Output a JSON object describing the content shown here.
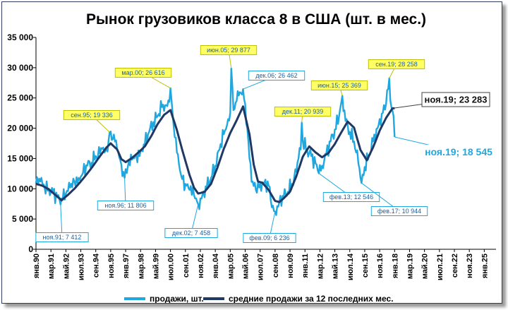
{
  "chart_data": {
    "type": "line",
    "title": "Рынок грузовиков класса 8 в США (шт. в мес.)",
    "ylim": [
      0,
      35000
    ],
    "y_ticks": [
      "0",
      "5 000",
      "10 000",
      "15 000",
      "20 000",
      "25 000",
      "30 000",
      "35 000"
    ],
    "y_tick_values": [
      0,
      5000,
      10000,
      15000,
      20000,
      25000,
      30000,
      35000
    ],
    "x_ticks": [
      "янв.90",
      "мар.91",
      "май.92",
      "июл.93",
      "сен.94",
      "ноя.95",
      "янв.97",
      "мар.98",
      "май.99",
      "июл.00",
      "сен.01",
      "ноя.02",
      "янв.04",
      "мар.05",
      "май.06",
      "июл.07",
      "сен.08",
      "ноя.09",
      "янв.11",
      "мар.12",
      "май.13",
      "июл.14",
      "сен.15",
      "ноя.16",
      "янв.18",
      "мар.19",
      "май.20",
      "июл.21",
      "сен.22",
      "ноя.23",
      "янв.25"
    ],
    "x_tick_index": [
      0,
      14,
      28,
      42,
      56,
      70,
      84,
      98,
      112,
      126,
      140,
      154,
      168,
      182,
      196,
      210,
      224,
      238,
      252,
      266,
      280,
      294,
      308,
      322,
      336,
      350,
      364,
      378,
      392,
      406,
      420
    ],
    "x_range": [
      0,
      431
    ],
    "grid": false,
    "legend_position": "bottom",
    "colors": {
      "monthly": "#1fa8e0",
      "average": "#1f3864"
    },
    "series": [
      {
        "name": "продажи, шт.",
        "points": [
          [
            0,
            11000
          ],
          [
            4,
            11200
          ],
          [
            8,
            10300
          ],
          [
            12,
            10000
          ],
          [
            16,
            9400
          ],
          [
            20,
            8600
          ],
          [
            22,
            8200
          ],
          [
            23,
            7412
          ],
          [
            24,
            8400
          ],
          [
            28,
            9200
          ],
          [
            32,
            10200
          ],
          [
            36,
            11200
          ],
          [
            40,
            11800
          ],
          [
            44,
            12600
          ],
          [
            48,
            13800
          ],
          [
            52,
            14300
          ],
          [
            56,
            15400
          ],
          [
            60,
            15800
          ],
          [
            62,
            16600
          ],
          [
            64,
            16000
          ],
          [
            66,
            16800
          ],
          [
            68,
            18000
          ],
          [
            69,
            19336
          ],
          [
            72,
            18200
          ],
          [
            74,
            17800
          ],
          [
            76,
            16500
          ],
          [
            78,
            15200
          ],
          [
            80,
            14000
          ],
          [
            82,
            12800
          ],
          [
            83,
            11806
          ],
          [
            86,
            13600
          ],
          [
            90,
            14800
          ],
          [
            94,
            15400
          ],
          [
            98,
            16200
          ],
          [
            102,
            17400
          ],
          [
            106,
            19400
          ],
          [
            110,
            21000
          ],
          [
            114,
            22000
          ],
          [
            118,
            23500
          ],
          [
            122,
            23800
          ],
          [
            124,
            24600
          ],
          [
            126,
            26616
          ],
          [
            128,
            22500
          ],
          [
            130,
            18500
          ],
          [
            132,
            16000
          ],
          [
            134,
            14000
          ],
          [
            136,
            12200
          ],
          [
            140,
            10800
          ],
          [
            144,
            9800
          ],
          [
            148,
            9000
          ],
          [
            150,
            8400
          ],
          [
            152,
            7458
          ],
          [
            154,
            8400
          ],
          [
            156,
            9000
          ],
          [
            160,
            10200
          ],
          [
            164,
            11800
          ],
          [
            168,
            13800
          ],
          [
            172,
            16500
          ],
          [
            176,
            19000
          ],
          [
            180,
            21500
          ],
          [
            182,
            22500
          ],
          [
            183,
            29877
          ],
          [
            185,
            23000
          ],
          [
            188,
            24500
          ],
          [
            190,
            25400
          ],
          [
            192,
            25800
          ],
          [
            194,
            26462
          ],
          [
            196,
            24000
          ],
          [
            198,
            20000
          ],
          [
            200,
            15000
          ],
          [
            203,
            11200
          ],
          [
            206,
            9800
          ],
          [
            210,
            10800
          ],
          [
            214,
            11000
          ],
          [
            218,
            10500
          ],
          [
            220,
            8000
          ],
          [
            222,
            7200
          ],
          [
            224,
            6236
          ],
          [
            228,
            7800
          ],
          [
            232,
            8600
          ],
          [
            236,
            9500
          ],
          [
            240,
            10800
          ],
          [
            244,
            12800
          ],
          [
            246,
            15000
          ],
          [
            248,
            16500
          ],
          [
            249,
            20939
          ],
          [
            250,
            17800
          ],
          [
            254,
            16500
          ],
          [
            258,
            15400
          ],
          [
            262,
            14200
          ],
          [
            264,
            13000
          ],
          [
            265,
            12546
          ],
          [
            268,
            13800
          ],
          [
            272,
            15800
          ],
          [
            276,
            17800
          ],
          [
            280,
            19800
          ],
          [
            284,
            22000
          ],
          [
            287,
            25369
          ],
          [
            290,
            21200
          ],
          [
            294,
            19400
          ],
          [
            298,
            17800
          ],
          [
            300,
            16000
          ],
          [
            302,
            14200
          ],
          [
            304,
            11800
          ],
          [
            305,
            10944
          ],
          [
            308,
            13600
          ],
          [
            312,
            15600
          ],
          [
            316,
            17800
          ],
          [
            320,
            20000
          ],
          [
            324,
            22400
          ],
          [
            328,
            24000
          ],
          [
            331,
            28258
          ],
          [
            333,
            23500
          ],
          [
            335,
            22000
          ],
          [
            336,
            18545
          ]
        ]
      },
      {
        "name": "средние продажи за 12 последних мес.",
        "points": [
          [
            0,
            10800
          ],
          [
            6,
            10500
          ],
          [
            12,
            9900
          ],
          [
            18,
            9000
          ],
          [
            24,
            8100
          ],
          [
            30,
            9000
          ],
          [
            36,
            10000
          ],
          [
            42,
            11200
          ],
          [
            48,
            12500
          ],
          [
            54,
            13900
          ],
          [
            60,
            15400
          ],
          [
            66,
            16800
          ],
          [
            70,
            17500
          ],
          [
            76,
            16500
          ],
          [
            80,
            14900
          ],
          [
            84,
            14400
          ],
          [
            90,
            15100
          ],
          [
            96,
            16000
          ],
          [
            102,
            17000
          ],
          [
            108,
            18700
          ],
          [
            114,
            20700
          ],
          [
            120,
            22200
          ],
          [
            126,
            23000
          ],
          [
            132,
            19700
          ],
          [
            138,
            15800
          ],
          [
            144,
            12200
          ],
          [
            148,
            10200
          ],
          [
            152,
            9200
          ],
          [
            158,
            9500
          ],
          [
            164,
            10800
          ],
          [
            170,
            13500
          ],
          [
            176,
            16600
          ],
          [
            182,
            19200
          ],
          [
            188,
            21300
          ],
          [
            194,
            23600
          ],
          [
            200,
            19000
          ],
          [
            204,
            14000
          ],
          [
            208,
            11200
          ],
          [
            212,
            11000
          ],
          [
            218,
            9800
          ],
          [
            224,
            8000
          ],
          [
            228,
            7800
          ],
          [
            232,
            8400
          ],
          [
            238,
            9500
          ],
          [
            244,
            12100
          ],
          [
            250,
            15300
          ],
          [
            256,
            17000
          ],
          [
            262,
            16000
          ],
          [
            268,
            15200
          ],
          [
            274,
            15900
          ],
          [
            280,
            17400
          ],
          [
            286,
            19300
          ],
          [
            292,
            21100
          ],
          [
            298,
            20100
          ],
          [
            304,
            16400
          ],
          [
            310,
            14700
          ],
          [
            316,
            16900
          ],
          [
            322,
            19600
          ],
          [
            328,
            21700
          ],
          [
            334,
            23283
          ],
          [
            336,
            23283
          ]
        ]
      }
    ],
    "annotations": [
      {
        "label": "ноя.91; 7 412",
        "index": 23,
        "value": 7412,
        "series": "продажи, шт."
      },
      {
        "label": "сен.95; 19 336",
        "index": 69,
        "value": 19336,
        "series": "продажи, шт."
      },
      {
        "label": "ноя.96; 11 806",
        "index": 83,
        "value": 11806,
        "series": "продажи, шт."
      },
      {
        "label": "мар.00; 26 616",
        "index": 126,
        "value": 26616,
        "series": "продажи, шт."
      },
      {
        "label": "дек.02; 7 458",
        "index": 152,
        "value": 7458,
        "series": "продажи, шт."
      },
      {
        "label": "июн.05; 29 877",
        "index": 183,
        "value": 29877,
        "series": "продажи, шт."
      },
      {
        "label": "дек.06; 26 462",
        "index": 194,
        "value": 26462,
        "series": "продажи, шт."
      },
      {
        "label": "фев.09; 6 236",
        "index": 224,
        "value": 6236,
        "series": "продажи, шт."
      },
      {
        "label": "дек.11; 20 939",
        "index": 249,
        "value": 20939,
        "series": "продажи, шт."
      },
      {
        "label": "фев.13; 12 546",
        "index": 265,
        "value": 12546,
        "series": "продажи, шт."
      },
      {
        "label": "июн.15; 25 369",
        "index": 287,
        "value": 25369,
        "series": "продажи, шт."
      },
      {
        "label": "фев.17; 10 944",
        "index": 305,
        "value": 10944,
        "series": "продажи, шт."
      },
      {
        "label": "сен.19; 28 258",
        "index": 331,
        "value": 28258,
        "series": "продажи, шт."
      },
      {
        "label": "ноя.19; 23 283",
        "index": 334,
        "value": 23283,
        "series": "средние продажи за 12 последних мес."
      },
      {
        "label": "ноя.19; 18 545",
        "index": 336,
        "value": 18545,
        "series": "продажи, шт."
      }
    ]
  }
}
